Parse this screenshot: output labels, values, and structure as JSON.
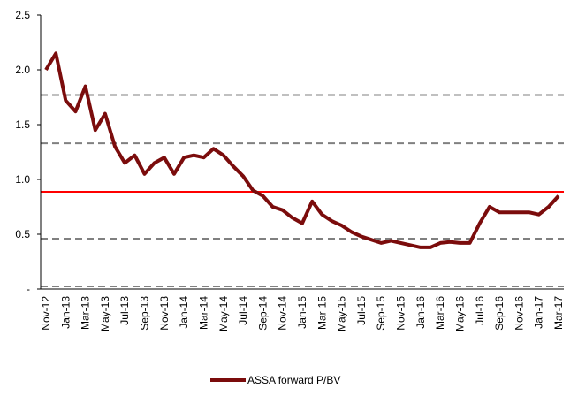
{
  "chart_data": {
    "type": "line",
    "categories": [
      "Nov-12",
      null,
      "Jan-13",
      null,
      "Mar-13",
      null,
      "May-13",
      null,
      "Jul-13",
      null,
      "Sep-13",
      null,
      "Nov-13",
      null,
      "Jan-14",
      null,
      "Mar-14",
      null,
      "May-14",
      null,
      "Jul-14",
      null,
      "Sep-14",
      null,
      "Nov-14",
      null,
      "Jan-15",
      null,
      "Mar-15",
      null,
      "May-15",
      null,
      "Jul-15",
      null,
      "Sep-15",
      null,
      "Nov-15",
      null,
      "Jan-16",
      null,
      "Mar-16",
      null,
      "May-16",
      null,
      "Jul-16",
      null,
      "Sep-16",
      null,
      "Nov-16",
      null,
      "Jan-17",
      null,
      "Mar-17"
    ],
    "series": [
      {
        "name": "ASSA forward P/BV",
        "color": "#7b0c0c",
        "values": [
          2.0,
          2.15,
          1.72,
          1.62,
          1.85,
          1.45,
          1.6,
          1.3,
          1.15,
          1.22,
          1.05,
          1.15,
          1.2,
          1.05,
          1.2,
          1.22,
          1.2,
          1.28,
          1.22,
          1.12,
          1.03,
          0.9,
          0.85,
          0.75,
          0.72,
          0.65,
          0.6,
          0.8,
          0.68,
          0.62,
          0.58,
          0.52,
          0.48,
          0.45,
          0.42,
          0.44,
          0.42,
          0.4,
          0.38,
          0.38,
          0.42,
          0.43,
          0.42,
          0.42,
          0.6,
          0.75,
          0.7,
          0.7,
          0.7,
          0.7,
          0.68,
          0.75,
          0.85
        ]
      }
    ],
    "ylim": [
      0,
      2.5
    ],
    "yticks": [
      {
        "value": 0,
        "label": "-"
      },
      0.5,
      {
        "value": 1.0,
        "label": "1.0"
      },
      1.5,
      {
        "value": 2.0,
        "label": "2.0"
      },
      2.5
    ],
    "reference_lines": [
      {
        "value": 1.77,
        "color": "#808080",
        "dashed": true
      },
      {
        "value": 1.33,
        "color": "#808080",
        "dashed": true
      },
      {
        "value": 0.887,
        "color": "#ff0000",
        "dashed": false
      },
      {
        "value": 0.46,
        "color": "#808080",
        "dashed": true
      },
      {
        "value": 0.024,
        "color": "#808080",
        "dashed": true
      }
    ],
    "legend": "bottom"
  }
}
